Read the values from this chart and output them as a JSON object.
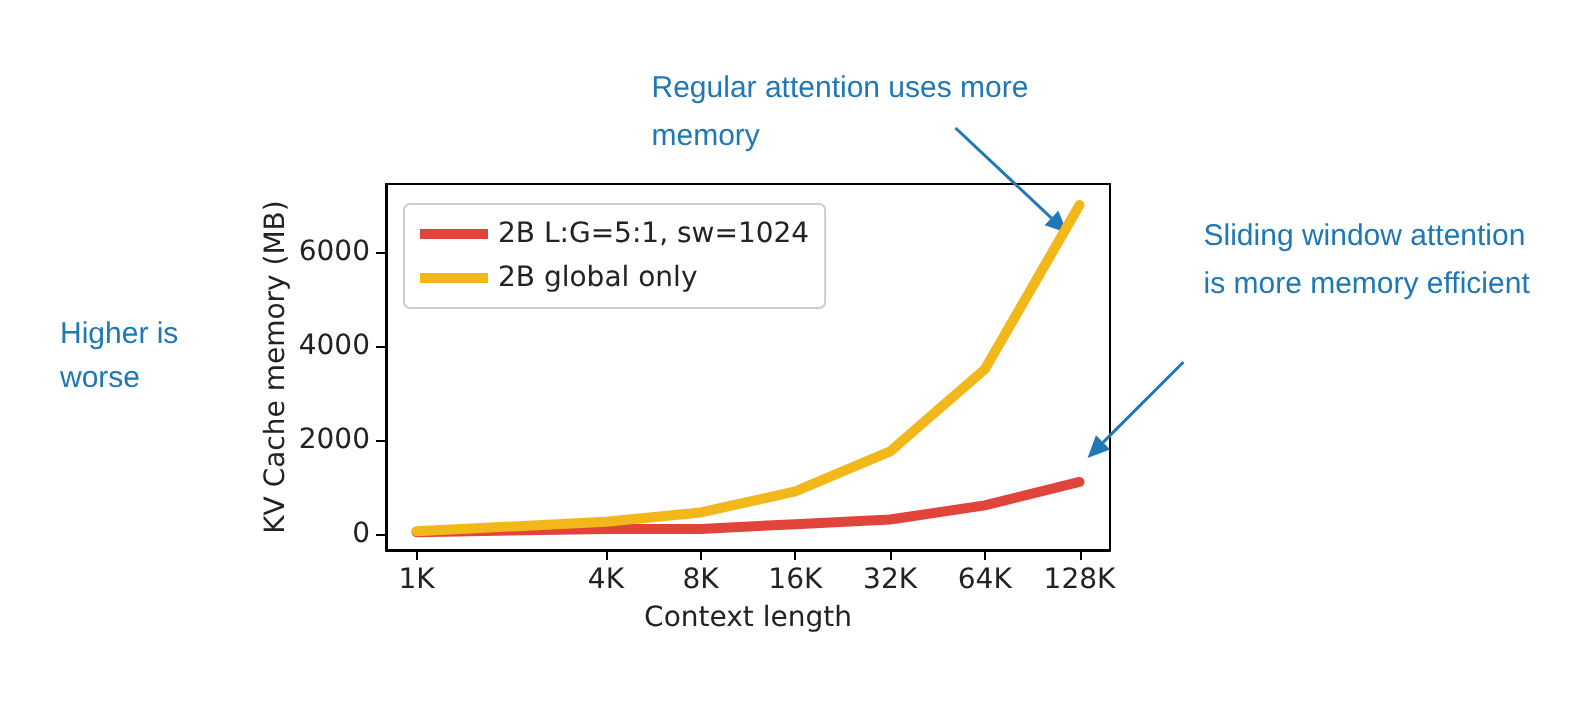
{
  "chart_data": {
    "type": "line",
    "xlabel": "Context length",
    "ylabel": "KV Cache memory (MB)",
    "x": [
      1,
      4,
      8,
      16,
      32,
      64,
      128
    ],
    "series": [
      {
        "name": "2B L:G=5:1, sw=1024",
        "color": "#e0443a",
        "values": [
          30,
          100,
          100,
          200,
          300,
          600,
          1100
        ]
      },
      {
        "name": "2B global only",
        "color": "#f2b718",
        "values": [
          50,
          250,
          450,
          900,
          1750,
          3500,
          7000
        ]
      }
    ],
    "log": "x",
    "xlim": [
      0.8,
      160
    ],
    "xticks": [
      {
        "value": 1,
        "label": "1K"
      },
      {
        "value": 4,
        "label": "4K"
      },
      {
        "value": 8,
        "label": "8K"
      },
      {
        "value": 16,
        "label": "16K"
      },
      {
        "value": 32,
        "label": "32K"
      },
      {
        "value": 64,
        "label": "64K"
      },
      {
        "value": 128,
        "label": "128K"
      }
    ],
    "ylim": [
      -350,
      7450
    ],
    "yticks": [
      0,
      2000,
      4000,
      6000
    ],
    "grid": false,
    "legend": "top left",
    "marker": "none",
    "line_style": "solid",
    "annotations": [
      "Higher is worse",
      {
        "text": "Regular attention uses more memory",
        "x": 128,
        "y": 7000
      },
      "Sliding window attention is more memory efficient"
    ]
  }
}
